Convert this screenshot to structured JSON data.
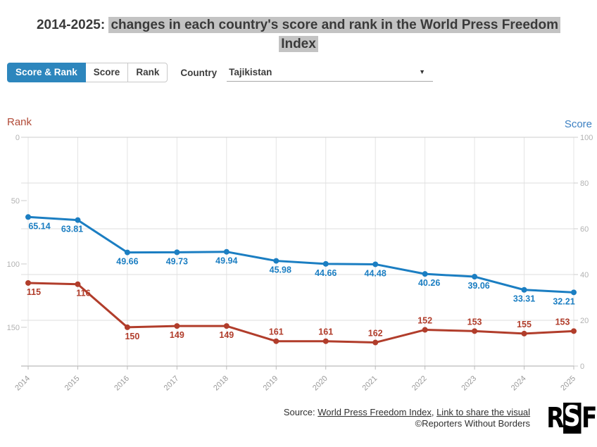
{
  "title": {
    "prefix": "2014-2025: ",
    "highlight_line1": "changes in each country's score and rank in the World Press Freedom",
    "highlight_line2": "Index"
  },
  "controls": {
    "tabs": [
      {
        "label": "Score & Rank",
        "active": true
      },
      {
        "label": "Score",
        "active": false
      },
      {
        "label": "Rank",
        "active": false
      }
    ],
    "country_label": "Country",
    "country_value": "Tajikistan",
    "dropdown_caret": "▼"
  },
  "chart_data": {
    "type": "line",
    "x": [
      2014,
      2015,
      2016,
      2017,
      2018,
      2019,
      2020,
      2021,
      2022,
      2023,
      2024,
      2025
    ],
    "series": [
      {
        "name": "Score",
        "axis": "right",
        "color": "#1b7ec2",
        "decimals": 2,
        "values": [
          65.14,
          63.81,
          49.66,
          49.73,
          49.94,
          45.98,
          44.66,
          44.48,
          40.26,
          39.06,
          33.31,
          32.21
        ]
      },
      {
        "name": "Rank",
        "axis": "left",
        "color": "#b13d2b",
        "decimals": 0,
        "values": [
          115,
          116,
          150,
          149,
          149,
          161,
          161,
          162,
          152,
          153,
          155,
          153
        ]
      }
    ],
    "left_axis": {
      "title": "Rank",
      "color": "#b14a37",
      "min": 0,
      "max": 180.6,
      "ticks": [
        0,
        50,
        100,
        150
      ],
      "inverted": true
    },
    "right_axis": {
      "title": "Score",
      "color": "#3d80c2",
      "min": 0,
      "max": 100,
      "ticks": [
        100,
        80,
        60,
        40,
        20,
        0
      ]
    },
    "grid": {
      "horizontal_at": "right-axis ticks",
      "vertical_at": "every year"
    },
    "legend": "none"
  },
  "footer": {
    "source_prefix": "Source: ",
    "source_link": "World Press Freedom Index",
    "separator": ", ",
    "share_link": "Link to share the visual",
    "copyright": "©Reporters Without Borders",
    "logo": {
      "r": "R",
      "s": "S",
      "f": "F"
    }
  }
}
